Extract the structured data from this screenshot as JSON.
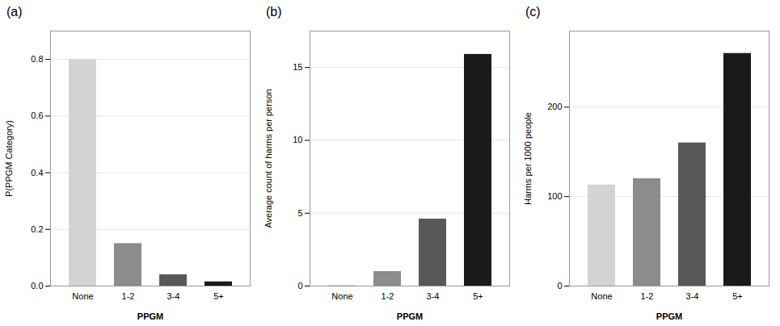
{
  "chart_data": [
    {
      "type": "bar",
      "title": "(a)",
      "categories": [
        "None",
        "1-2",
        "3-4",
        "5+"
      ],
      "values": [
        0.8,
        0.15,
        0.04,
        0.015
      ],
      "colors": [
        "#d3d3d3",
        "#8c8c8c",
        "#595959",
        "#1a1a1a"
      ],
      "xlabel": "PPGM",
      "ylabel": "P(PPGM Category)",
      "ylim": [
        0,
        0.9
      ],
      "yticks": [
        {
          "value": 0.0,
          "label": "0.0"
        },
        0.2,
        0.4,
        0.6,
        0.8
      ],
      "grid": true
    },
    {
      "type": "bar",
      "title": "(b)",
      "categories": [
        "None",
        "1-2",
        "3-4",
        "5+"
      ],
      "values": [
        0.05,
        1.0,
        4.6,
        15.9
      ],
      "colors": [
        "#d3d3d3",
        "#8c8c8c",
        "#595959",
        "#1a1a1a"
      ],
      "xlabel": "PPGM",
      "ylabel": "Average count of harms per person",
      "ylim": [
        0,
        17.5
      ],
      "yticks": [
        0,
        5,
        10,
        15
      ],
      "grid": true
    },
    {
      "type": "bar",
      "title": "(c)",
      "categories": [
        "None",
        "1-2",
        "3-4",
        "5+"
      ],
      "values": [
        113,
        120,
        160,
        260
      ],
      "colors": [
        "#d3d3d3",
        "#8c8c8c",
        "#595959",
        "#1a1a1a"
      ],
      "xlabel": "PPGM",
      "ylabel": "Harms per 1000 people",
      "ylim": [
        0,
        285
      ],
      "yticks": [
        0,
        100,
        200
      ],
      "grid": true
    }
  ]
}
